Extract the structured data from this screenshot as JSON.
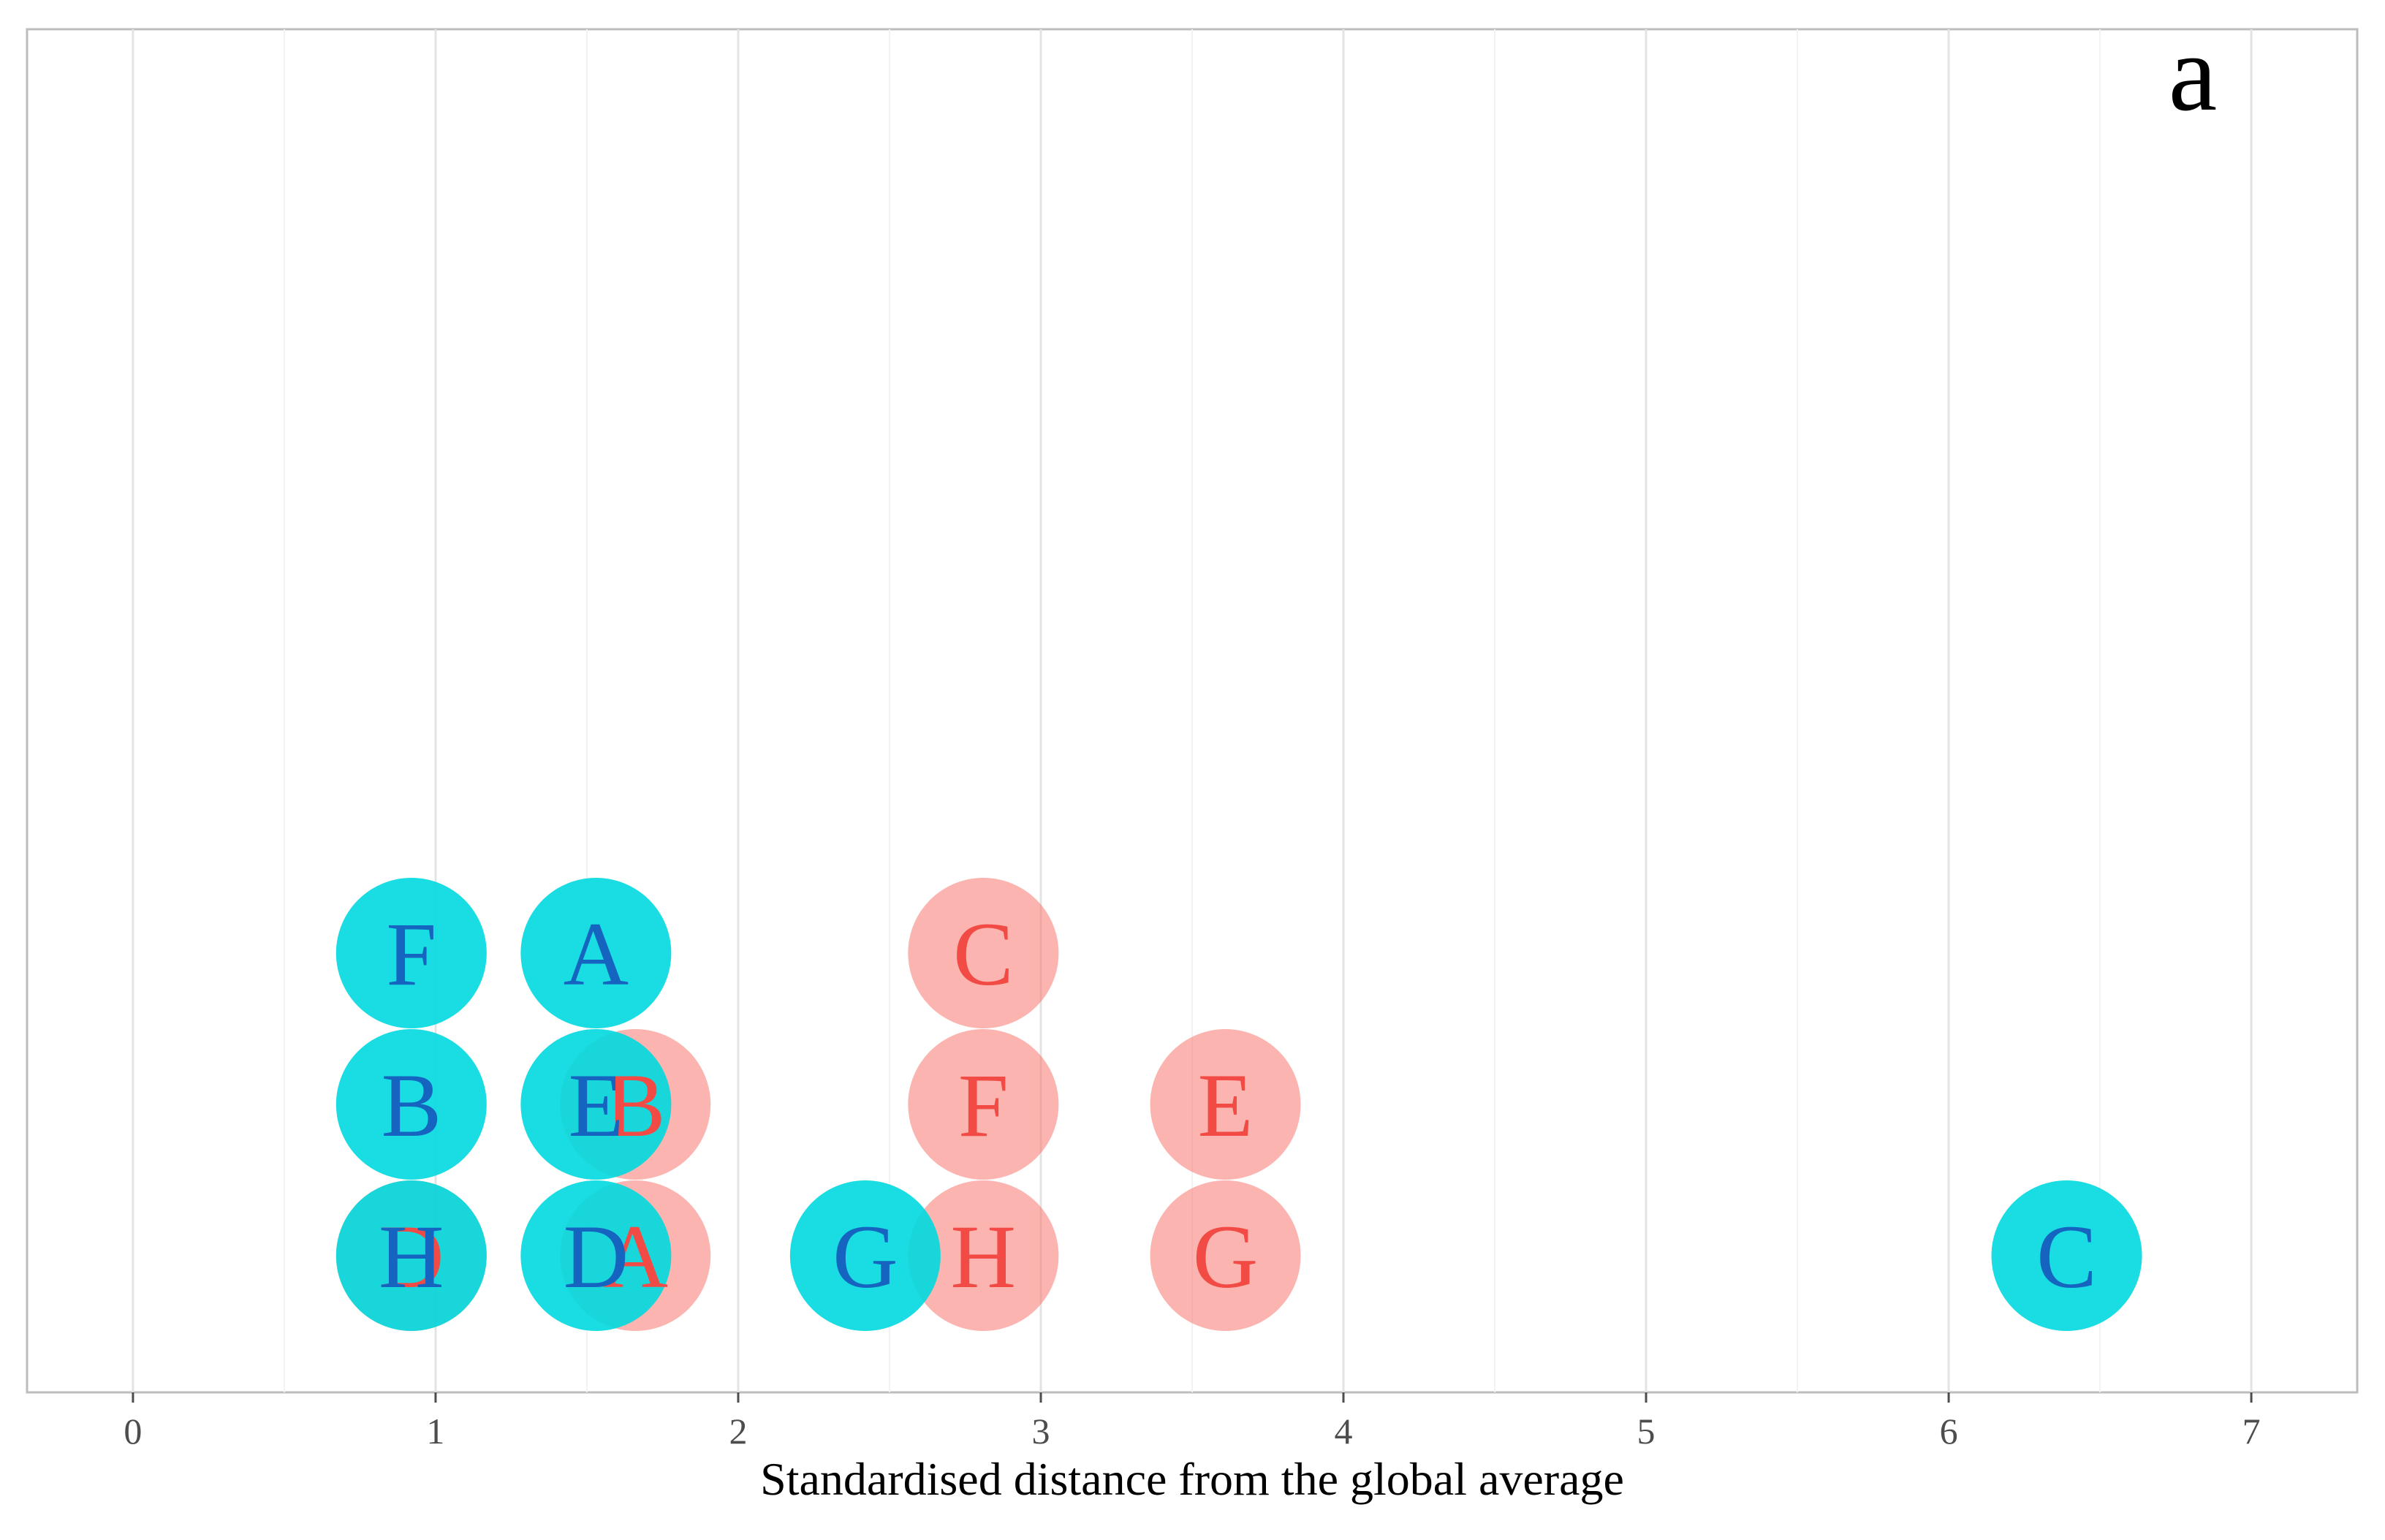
{
  "chart_data": {
    "type": "scatter",
    "panel_label": "a",
    "xlabel": "Standardised distance from the global average",
    "ylabel": "",
    "xlim": [
      -0.35,
      7.35
    ],
    "x_ticks": [
      "0",
      "1",
      "2",
      "3",
      "4",
      "5",
      "6",
      "7"
    ],
    "grid": true,
    "legend": "none",
    "colors": {
      "red": "#F8766D",
      "cyan": "#00D9DF",
      "cyan_text": "#1565C0",
      "red_text": "#F24B45"
    },
    "series": [
      {
        "name": "red",
        "points": [
          {
            "label": "D",
            "x": 0.92,
            "stack": 1
          },
          {
            "label": "A",
            "x": 1.66,
            "stack": 1
          },
          {
            "label": "B",
            "x": 1.66,
            "stack": 2
          },
          {
            "label": "H",
            "x": 2.81,
            "stack": 1
          },
          {
            "label": "F",
            "x": 2.81,
            "stack": 2
          },
          {
            "label": "C",
            "x": 2.81,
            "stack": 3
          },
          {
            "label": "G",
            "x": 3.61,
            "stack": 1
          },
          {
            "label": "E",
            "x": 3.61,
            "stack": 2
          }
        ]
      },
      {
        "name": "cyan",
        "points": [
          {
            "label": "H",
            "x": 0.92,
            "stack": 1
          },
          {
            "label": "B",
            "x": 0.92,
            "stack": 2
          },
          {
            "label": "F",
            "x": 0.92,
            "stack": 3
          },
          {
            "label": "D",
            "x": 1.53,
            "stack": 1
          },
          {
            "label": "E",
            "x": 1.53,
            "stack": 2
          },
          {
            "label": "A",
            "x": 1.53,
            "stack": 3
          },
          {
            "label": "G",
            "x": 2.42,
            "stack": 1
          },
          {
            "label": "C",
            "x": 6.39,
            "stack": 1
          }
        ]
      }
    ]
  }
}
